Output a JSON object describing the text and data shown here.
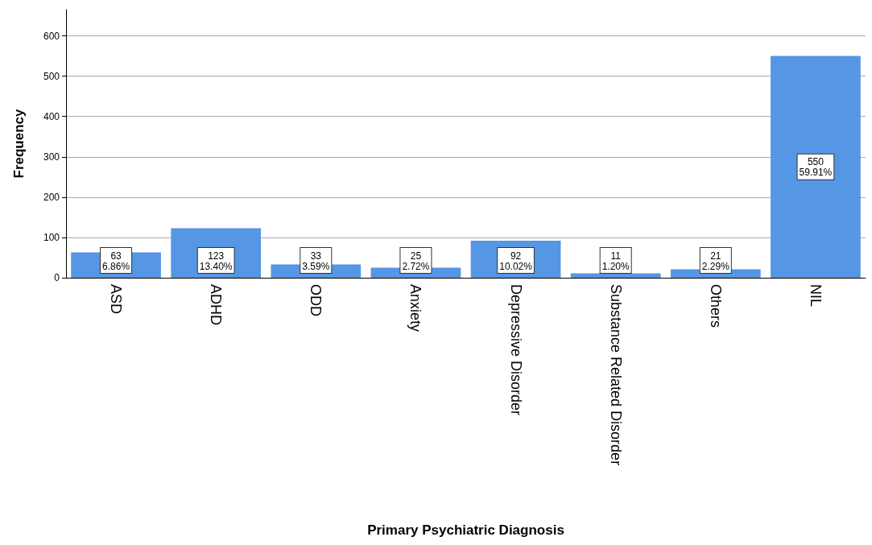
{
  "chart_data": {
    "type": "bar",
    "xlabel": "Primary Psychiatric Diagnosis",
    "ylabel": "Frequency",
    "categories": [
      "ASD",
      "ADHD",
      "ODD",
      "Anxiety",
      "Depressive Disorder",
      "Substance Related Disorder",
      "Others",
      "NIL"
    ],
    "values": [
      63,
      123,
      33,
      25,
      92,
      11,
      21,
      550
    ],
    "value_labels": [
      "63\n6.86%",
      "123\n13.40%",
      "33\n3.59%",
      "25\n2.72%",
      "92\n10.02%",
      "11\n1.20%",
      "21\n2.29%",
      "550\n59.91%"
    ],
    "color": "#5596e5",
    "ylim": [
      0,
      665
    ],
    "yticks": [
      0,
      100,
      200,
      300,
      400,
      500,
      600
    ],
    "grid": "y"
  }
}
